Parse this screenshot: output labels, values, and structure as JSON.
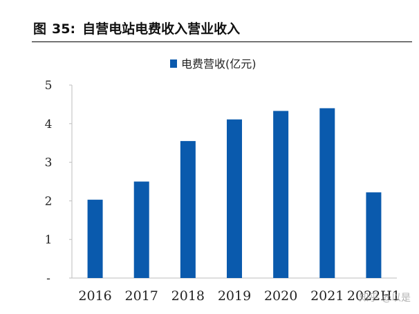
{
  "figure": {
    "label": "图",
    "number": "35:",
    "title": "自营电站电费收入营业收入"
  },
  "watermark": "知乎 @以是",
  "colors": {
    "bar": "#0a5aad",
    "axis": "#bdbdbd",
    "text": "#222222"
  },
  "chart_data": {
    "type": "bar",
    "categories": [
      "2016",
      "2017",
      "2018",
      "2019",
      "2020",
      "2021",
      "2022H1"
    ],
    "series": [
      {
        "name": "电费营收(亿元)",
        "values": [
          2.03,
          2.5,
          3.55,
          4.11,
          4.33,
          4.4,
          2.22
        ]
      }
    ],
    "ylim": [
      0,
      5
    ],
    "yticks": [
      "-",
      "1",
      "2",
      "3",
      "4",
      "5"
    ],
    "legend": "top-center",
    "grid": false
  }
}
